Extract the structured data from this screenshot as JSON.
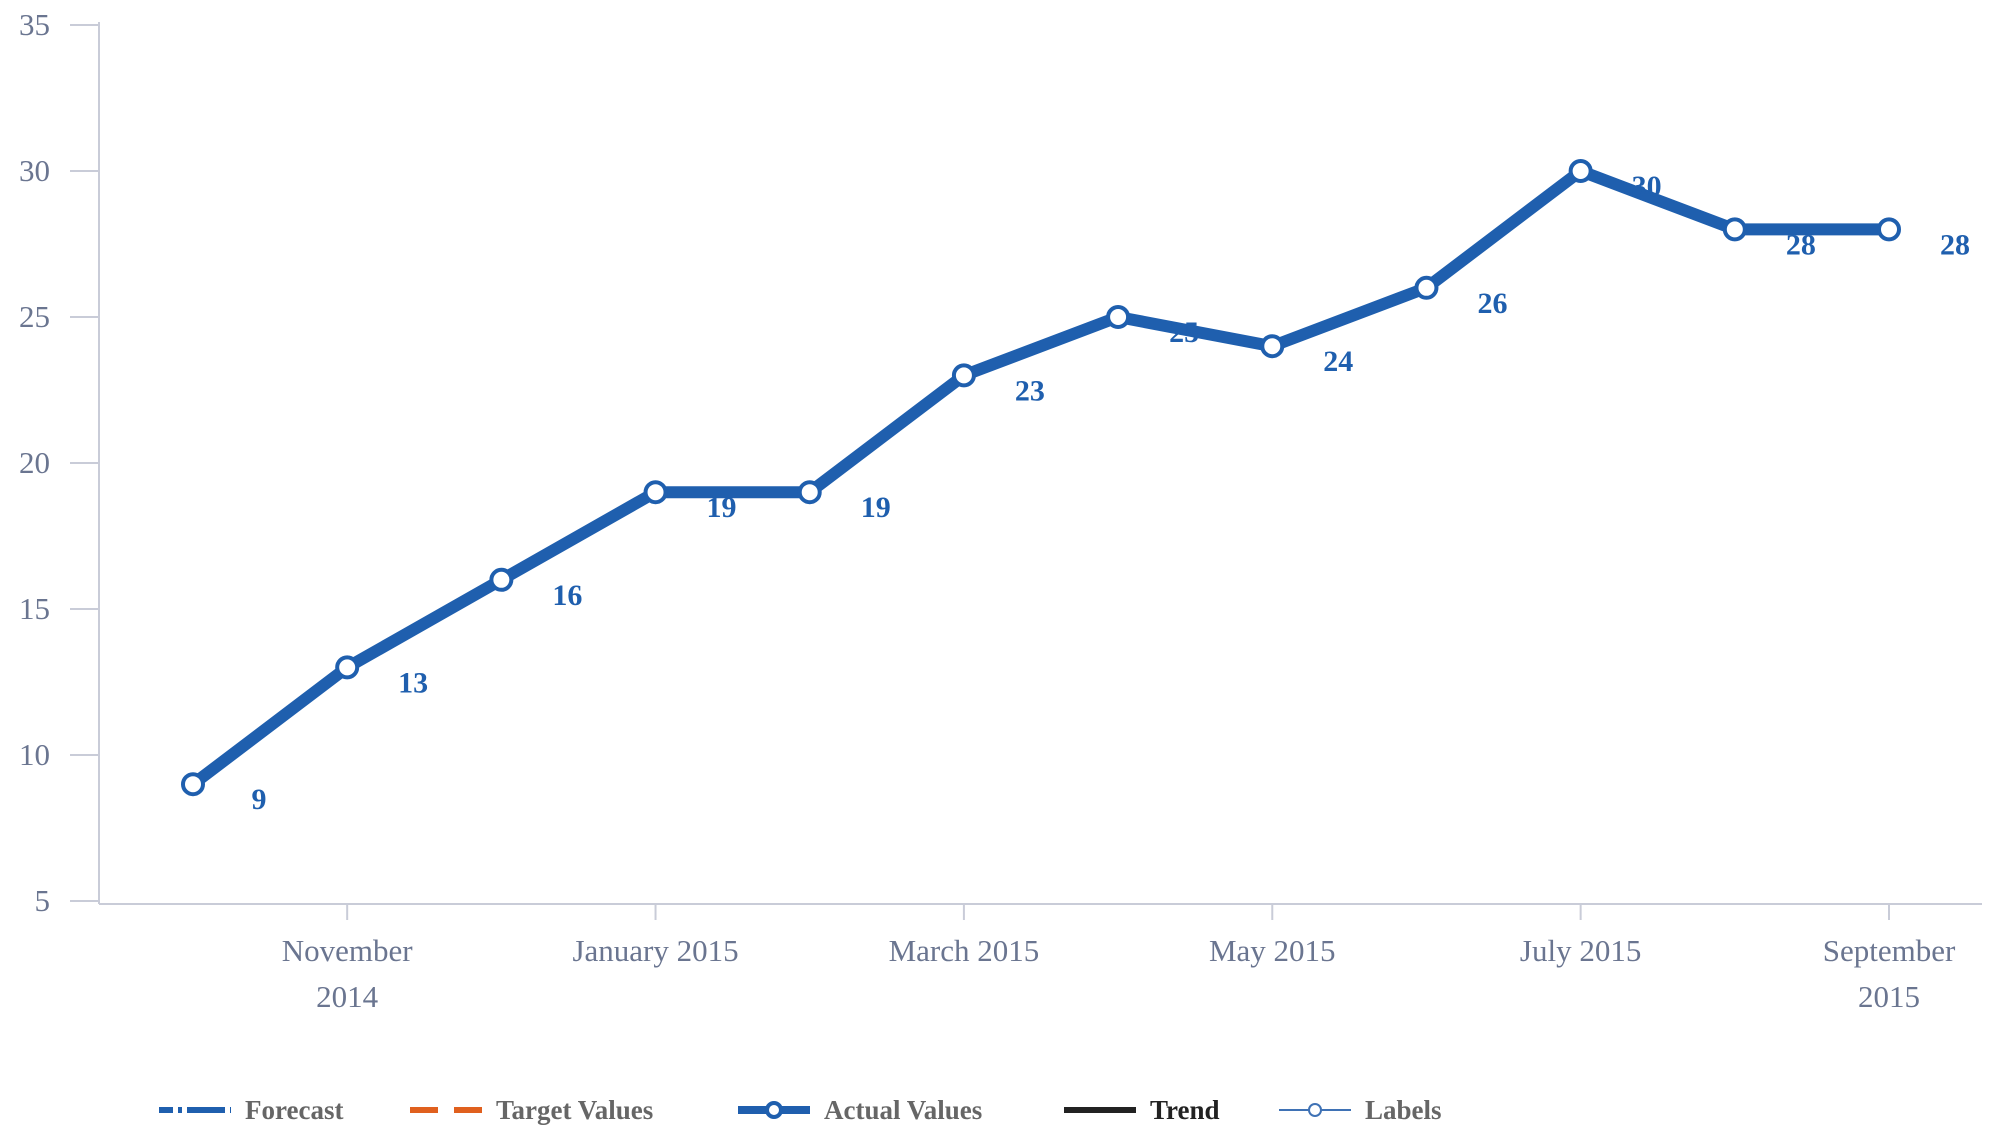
{
  "chart_data": {
    "type": "line",
    "categories": [
      null,
      "November 2014",
      null,
      "January 2015",
      null,
      "March 2015",
      null,
      "May 2015",
      null,
      "July 2015",
      null,
      "September 2015"
    ],
    "series": [
      {
        "color": "#1f5fae",
        "values": [
          9,
          13,
          16,
          19,
          19,
          23,
          25,
          24,
          26,
          30,
          28,
          28
        ]
      }
    ],
    "ylim": [
      5,
      35
    ],
    "yticks": [
      5,
      10,
      15,
      20,
      25,
      30,
      35
    ],
    "grid": false,
    "data_labels": true,
    "legend_position": "bottom",
    "legend": [
      {
        "name": "Forecast",
        "color": "#1f5fae",
        "style": "dash-dot"
      },
      {
        "name": "Target Values",
        "color": "#e0601e",
        "style": "dashed"
      },
      {
        "name": "Actual Values",
        "color": "#1f5fae",
        "style": "line-marker"
      },
      {
        "name": "Trend",
        "color": "#222222",
        "style": "solid"
      },
      {
        "name": "Labels",
        "color": "#3f72b5",
        "style": "thin-marker"
      }
    ]
  }
}
